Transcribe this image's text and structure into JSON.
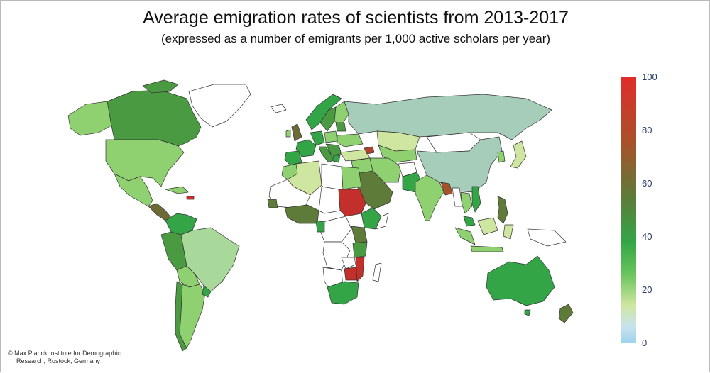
{
  "title": "Average emigration rates of scientists from 2013-2017",
  "subtitle": "(expressed as a number of emigrants per 1,000 active scholars per year)",
  "legend": {
    "ticks": [
      "100",
      "80",
      "60",
      "40",
      "20",
      "0"
    ],
    "min": 0,
    "max": 100,
    "colors": {
      "high": "#e02d2a",
      "mid_high": "#a8522a",
      "mid": "#34a547",
      "low": "#cfe6a0",
      "zero": "#9fd3ec"
    }
  },
  "credit": {
    "line1": "© Max Planck Institute for Demographic",
    "line2": "Research, Rostock, Germany"
  },
  "regions": [
    {
      "name": "Canada",
      "level": 40
    },
    {
      "name": "United States",
      "level": 20
    },
    {
      "name": "Mexico",
      "level": 20
    },
    {
      "name": "Brazil",
      "level": 12
    },
    {
      "name": "Peru",
      "level": 40
    },
    {
      "name": "Argentina",
      "level": 20
    },
    {
      "name": "Russia",
      "level": 5
    },
    {
      "name": "China",
      "level": 3
    },
    {
      "name": "India",
      "level": 20
    },
    {
      "name": "Sudan",
      "level": 100
    },
    {
      "name": "Saudi Arabia",
      "level": 45
    },
    {
      "name": "Zimbabwe",
      "level": 100
    },
    {
      "name": "South Africa",
      "level": 30
    },
    {
      "name": "Australia",
      "level": 30
    },
    {
      "name": "Philippines",
      "level": 45
    },
    {
      "name": "Indonesia",
      "level": 15
    },
    {
      "name": "Algeria",
      "level": 12
    },
    {
      "name": "Kazakhstan",
      "level": 15
    }
  ]
}
